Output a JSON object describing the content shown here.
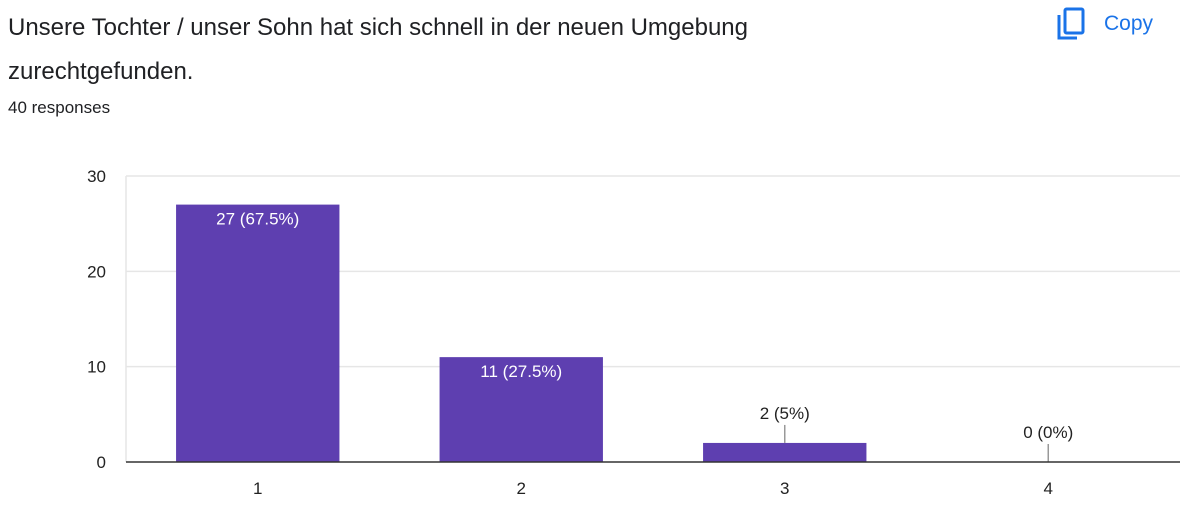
{
  "question": {
    "title": "Unsere Tochter / unser Sohn hat sich schnell in der neuen Umgebung zurechtgefunden.",
    "responses": "40 responses"
  },
  "toolbar": {
    "copy_label": "Copy",
    "copy_icon": "copy-icon"
  },
  "colors": {
    "bar": "#5e3fb0",
    "accent": "#1a73e8",
    "grid": "#e6e6e6",
    "axis": "#333333"
  },
  "chart_data": {
    "type": "bar",
    "title": "",
    "xlabel": "",
    "ylabel": "",
    "categories": [
      "1",
      "2",
      "3",
      "4"
    ],
    "values": [
      27,
      11,
      2,
      0
    ],
    "data_labels": [
      "27 (67.5%)",
      "11 (27.5%)",
      "2 (5%)",
      "0 (0%)"
    ],
    "ylim": [
      0,
      30
    ],
    "yticks": [
      0,
      10,
      20,
      30
    ],
    "grid": true,
    "legend": "none"
  }
}
